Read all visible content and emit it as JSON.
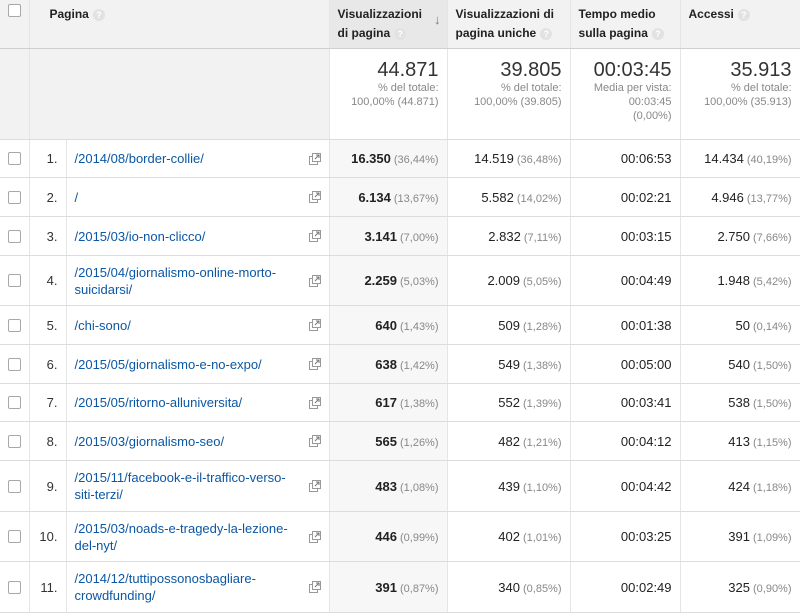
{
  "headers": {
    "page": "Pagina",
    "views": "Visualizzazioni di pagina",
    "unique": "Visualizzazioni di pagina uniche",
    "time": "Tempo medio sulla pagina",
    "entrances": "Accessi"
  },
  "totals": {
    "views": {
      "value": "44.871",
      "l1": "% del totale:",
      "l2": "100,00% (44.871)"
    },
    "unique": {
      "value": "39.805",
      "l1": "% del totale:",
      "l2": "100,00% (39.805)"
    },
    "time": {
      "value": "00:03:45",
      "l1": "Media per vista:",
      "l2": "00:03:45",
      "l3": "(0,00%)"
    },
    "entrances": {
      "value": "35.913",
      "l1": "% del totale:",
      "l2": "100,00% (35.913)"
    }
  },
  "rows": [
    {
      "idx": "1.",
      "page": "/2014/08/border-collie/",
      "views": "16.350",
      "views_pct": "(36,44%)",
      "unique": "14.519",
      "unique_pct": "(36,48%)",
      "time": "00:06:53",
      "entr": "14.434",
      "entr_pct": "(40,19%)"
    },
    {
      "idx": "2.",
      "page": "/",
      "views": "6.134",
      "views_pct": "(13,67%)",
      "unique": "5.582",
      "unique_pct": "(14,02%)",
      "time": "00:02:21",
      "entr": "4.946",
      "entr_pct": "(13,77%)"
    },
    {
      "idx": "3.",
      "page": "/2015/03/io-non-clicco/",
      "views": "3.141",
      "views_pct": "(7,00%)",
      "unique": "2.832",
      "unique_pct": "(7,11%)",
      "time": "00:03:15",
      "entr": "2.750",
      "entr_pct": "(7,66%)"
    },
    {
      "idx": "4.",
      "page": "/2015/04/giornalismo-online-morto-suicidarsi/",
      "views": "2.259",
      "views_pct": "(5,03%)",
      "unique": "2.009",
      "unique_pct": "(5,05%)",
      "time": "00:04:49",
      "entr": "1.948",
      "entr_pct": "(5,42%)"
    },
    {
      "idx": "5.",
      "page": "/chi-sono/",
      "views": "640",
      "views_pct": "(1,43%)",
      "unique": "509",
      "unique_pct": "(1,28%)",
      "time": "00:01:38",
      "entr": "50",
      "entr_pct": "(0,14%)"
    },
    {
      "idx": "6.",
      "page": "/2015/05/giornalismo-e-no-expo/",
      "views": "638",
      "views_pct": "(1,42%)",
      "unique": "549",
      "unique_pct": "(1,38%)",
      "time": "00:05:00",
      "entr": "540",
      "entr_pct": "(1,50%)"
    },
    {
      "idx": "7.",
      "page": "/2015/05/ritorno-alluniversita/",
      "views": "617",
      "views_pct": "(1,38%)",
      "unique": "552",
      "unique_pct": "(1,39%)",
      "time": "00:03:41",
      "entr": "538",
      "entr_pct": "(1,50%)"
    },
    {
      "idx": "8.",
      "page": "/2015/03/giornalismo-seo/",
      "views": "565",
      "views_pct": "(1,26%)",
      "unique": "482",
      "unique_pct": "(1,21%)",
      "time": "00:04:12",
      "entr": "413",
      "entr_pct": "(1,15%)"
    },
    {
      "idx": "9.",
      "page": "/2015/11/facebook-e-il-traffico-verso-siti-terzi/",
      "views": "483",
      "views_pct": "(1,08%)",
      "unique": "439",
      "unique_pct": "(1,10%)",
      "time": "00:04:42",
      "entr": "424",
      "entr_pct": "(1,18%)"
    },
    {
      "idx": "10.",
      "page": "/2015/03/noads-e-tragedy-la-lezione-del-nyt/",
      "views": "446",
      "views_pct": "(0,99%)",
      "unique": "402",
      "unique_pct": "(1,01%)",
      "time": "00:03:25",
      "entr": "391",
      "entr_pct": "(1,09%)"
    },
    {
      "idx": "11.",
      "page": "/2014/12/tuttipossonosbagliare-crowdfunding/",
      "views": "391",
      "views_pct": "(0,87%)",
      "unique": "340",
      "unique_pct": "(0,85%)",
      "time": "00:02:49",
      "entr": "325",
      "entr_pct": "(0,90%)"
    }
  ]
}
